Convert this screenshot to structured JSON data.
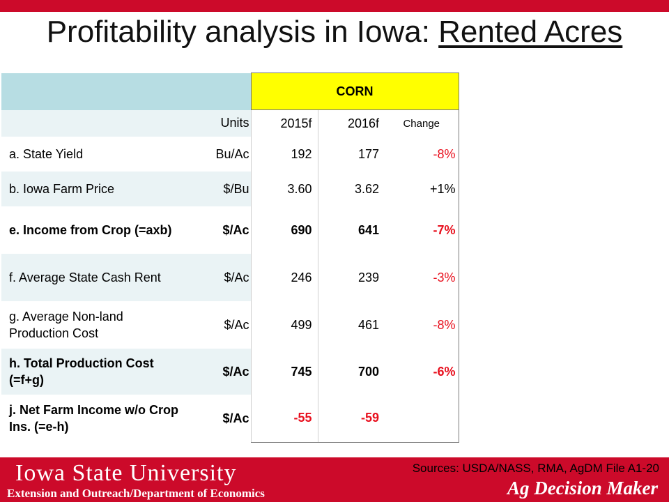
{
  "title": {
    "prefix": "Profitability analysis in Iowa: ",
    "underlined": "Rented Acres"
  },
  "table": {
    "group_header": "CORN",
    "columns": {
      "units": "Units",
      "y2015": "2015f",
      "y2016": "2016f",
      "change": "Change"
    },
    "rows": [
      {
        "label": "a. State Yield",
        "units": "Bu/Ac",
        "y2015": "192",
        "y2016": "177",
        "change": "-8%"
      },
      {
        "label": "b. Iowa Farm Price",
        "units": "$/Bu",
        "y2015": "3.60",
        "y2016": "3.62",
        "change": "+1%"
      },
      {
        "label": "e. Income from Crop (=axb)",
        "units": "$/Ac",
        "y2015": "690",
        "y2016": "641",
        "change": "-7%"
      },
      {
        "label": "f. Average State Cash Rent",
        "units": "$/Ac",
        "y2015": "246",
        "y2016": "239",
        "change": "-3%"
      },
      {
        "label": "g. Average Non-land Production Cost",
        "units": "$/Ac",
        "y2015": "499",
        "y2016": "461",
        "change": "-8%"
      },
      {
        "label": "h. Total Production Cost (=f+g)",
        "units": "$/Ac",
        "y2015": "745",
        "y2016": "700",
        "change": "-6%"
      },
      {
        "label": "j. Net Farm Income w/o Crop Ins. (=e-h)",
        "units": "$/Ac",
        "y2015": "-55",
        "y2016": "-59",
        "change": ""
      }
    ]
  },
  "footer": {
    "university": "Iowa State University",
    "department": "Extension and Outreach/Department  of Economics",
    "sources": "Sources: USDA/NASS, RMA, AgDM File A1-20",
    "brand": "Ag Decision Maker"
  },
  "colors": {
    "accent_red": "#cc0a2a",
    "corn_yellow": "#ffff00",
    "header_blue": "#b7dde3",
    "negative_red": "#e8101e"
  }
}
